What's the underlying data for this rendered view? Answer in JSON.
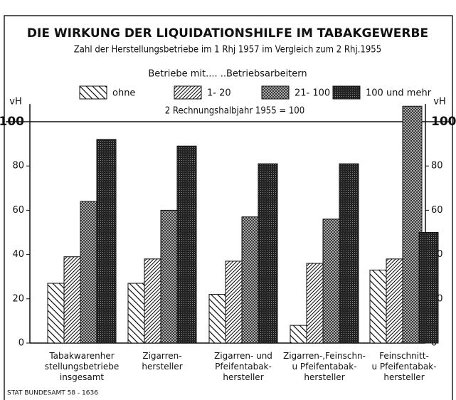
{
  "chart_data": {
    "type": "bar",
    "title": "DIE WIRKUNG DER LIQUIDATIONSHILFE IM TABAKGEWERBE",
    "subtitle": "Zahl der Herstellungsbetriebe im 1 Rhj 1957 im Vergleich zum 2 Rhj.1955",
    "legend_title": "Betriebe mit.... ..Betriebsarbeitern",
    "y_label": "vH",
    "reference_line": {
      "value": 100,
      "label": "2 Rechnungshalbjahr 1955 = 100"
    },
    "source": "STAT BUNDESAMT 58 - 1636",
    "categories": [
      "Tabakwarenher\nstellungsbetriebe\ninsgesamt",
      "Zigarren-\nhersteller",
      "Zigarren- und\nPfeifentabak-\nhersteller",
      "Zigarren-,Feinschn-\nu Pfeifentabak-\nhersteller",
      "Feinschnitt-\nu Pfeifentabak-\nhersteller"
    ],
    "series": [
      {
        "name": "ohne",
        "values": [
          27,
          27,
          22,
          8,
          33
        ]
      },
      {
        "name": "1- 20",
        "values": [
          39,
          38,
          37,
          36,
          38
        ]
      },
      {
        "name": "21- 100",
        "values": [
          64,
          60,
          57,
          56,
          107
        ]
      },
      {
        "name": "100 und mehr",
        "values": [
          92,
          89,
          81,
          81,
          50
        ]
      }
    ],
    "ylim": [
      0,
      108
    ],
    "yticks": [
      0,
      20,
      40,
      60,
      80,
      100
    ]
  }
}
